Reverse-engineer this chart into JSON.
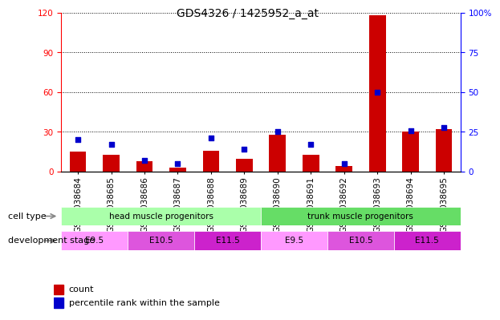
{
  "title": "GDS4326 / 1425952_a_at",
  "samples": [
    "GSM1038684",
    "GSM1038685",
    "GSM1038686",
    "GSM1038687",
    "GSM1038688",
    "GSM1038689",
    "GSM1038690",
    "GSM1038691",
    "GSM1038692",
    "GSM1038693",
    "GSM1038694",
    "GSM1038695"
  ],
  "counts": [
    15,
    13,
    8,
    3,
    16,
    10,
    28,
    13,
    4,
    118,
    30,
    32
  ],
  "percentiles": [
    20,
    17,
    7,
    5,
    21,
    14,
    25,
    17,
    5,
    50,
    26,
    28
  ],
  "left_ylim": [
    0,
    120
  ],
  "right_ylim": [
    0,
    100
  ],
  "left_yticks": [
    0,
    30,
    60,
    90,
    120
  ],
  "right_yticks": [
    0,
    25,
    50,
    75,
    100
  ],
  "right_yticklabels": [
    "0",
    "25",
    "50",
    "75",
    "100%"
  ],
  "bar_color": "#cc0000",
  "square_color": "#0000cc",
  "cell_types": [
    {
      "label": "head muscle progenitors",
      "start": 0,
      "end": 5,
      "color": "#aaffaa"
    },
    {
      "label": "trunk muscle progenitors",
      "start": 6,
      "end": 11,
      "color": "#66dd66"
    }
  ],
  "dev_stages": [
    {
      "label": "E9.5",
      "start": 0,
      "end": 1,
      "color": "#ff99ff"
    },
    {
      "label": "E10.5",
      "start": 2,
      "end": 3,
      "color": "#dd55dd"
    },
    {
      "label": "E11.5",
      "start": 4,
      "end": 5,
      "color": "#cc22cc"
    },
    {
      "label": "E9.5",
      "start": 6,
      "end": 7,
      "color": "#ff99ff"
    },
    {
      "label": "E10.5",
      "start": 8,
      "end": 9,
      "color": "#dd55dd"
    },
    {
      "label": "E11.5",
      "start": 10,
      "end": 11,
      "color": "#cc22cc"
    }
  ],
  "legend_count_label": "count",
  "legend_pct_label": "percentile rank within the sample",
  "cell_type_label": "cell type",
  "dev_stage_label": "development stage",
  "bar_width": 0.5,
  "square_size": 25,
  "bg_color": "#ffffff",
  "plot_bg_color": "#ffffff",
  "grid_color": "#000000",
  "title_fontsize": 10,
  "tick_fontsize": 7.5,
  "label_fontsize": 7.5,
  "row_label_fontsize": 8
}
